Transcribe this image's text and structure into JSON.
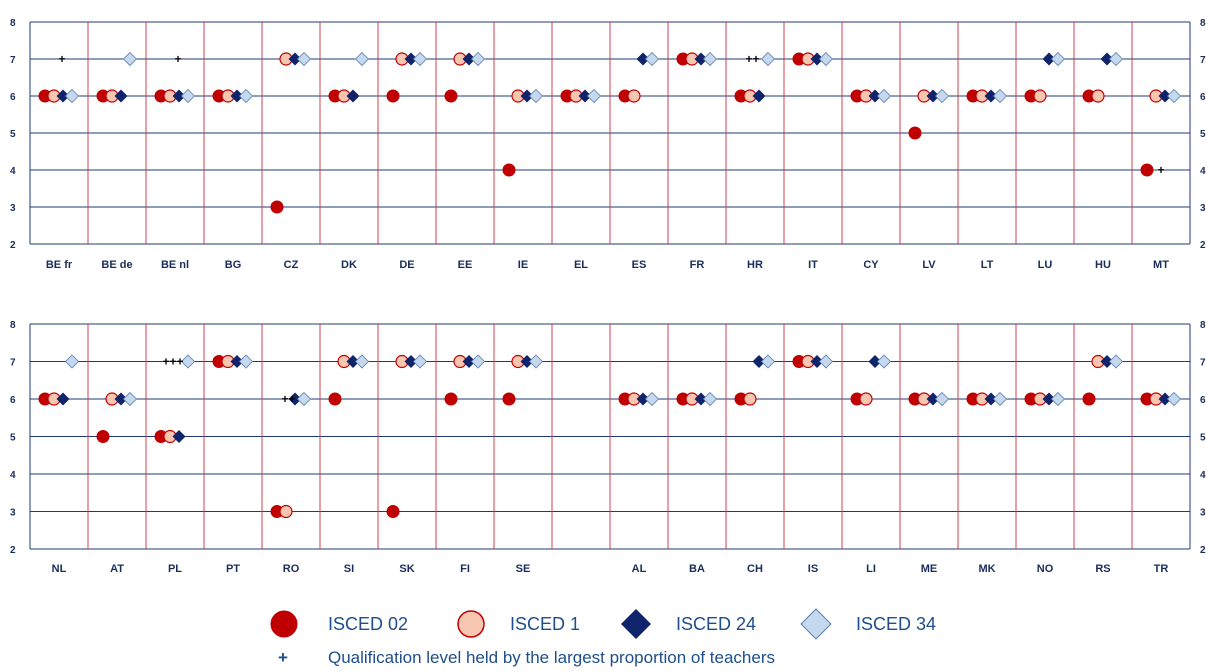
{
  "chart_data": [
    {
      "type": "scatter",
      "ylim": [
        2,
        8
      ],
      "yticks": [
        2,
        3,
        4,
        5,
        6,
        7,
        8
      ],
      "categories": [
        "BE fr",
        "BE de",
        "BE nl",
        "BG",
        "CZ",
        "DK",
        "DE",
        "EE",
        "IE",
        "EL",
        "ES",
        "FR",
        "HR",
        "IT",
        "CY",
        "LV",
        "LT",
        "LU",
        "HU",
        "MT"
      ],
      "series": [
        {
          "name": "ISCED 02",
          "values": [
            6,
            6,
            6,
            6,
            3,
            6,
            6,
            6,
            4,
            6,
            6,
            7,
            6,
            7,
            6,
            5,
            6,
            6,
            6,
            4
          ]
        },
        {
          "name": "ISCED 1",
          "values": [
            6,
            6,
            6,
            6,
            7,
            6,
            7,
            7,
            6,
            6,
            6,
            7,
            6,
            7,
            6,
            6,
            6,
            6,
            6,
            6
          ]
        },
        {
          "name": "ISCED 24",
          "values": [
            6,
            6,
            6,
            6,
            7,
            6,
            7,
            7,
            6,
            6,
            7,
            7,
            6,
            7,
            6,
            6,
            6,
            7,
            7,
            6
          ]
        },
        {
          "name": "ISCED 34",
          "values": [
            6,
            7,
            6,
            6,
            7,
            7,
            7,
            7,
            6,
            6,
            7,
            7,
            7,
            7,
            6,
            6,
            6,
            7,
            7,
            6
          ]
        }
      ],
      "plus_marks": [
        {
          "category": "BE fr",
          "level": 7,
          "count": 1
        },
        {
          "category": "BE nl",
          "level": 7,
          "count": 1
        },
        {
          "category": "HR",
          "level": 7,
          "count": 2
        },
        {
          "category": "MT",
          "level": 4,
          "count": 1
        }
      ]
    },
    {
      "type": "scatter",
      "ylim": [
        2,
        8
      ],
      "yticks": [
        2,
        3,
        4,
        5,
        6,
        7,
        8
      ],
      "categories": [
        "NL",
        "AT",
        "PL",
        "PT",
        "RO",
        "SI",
        "SK",
        "FI",
        "SE",
        "",
        "AL",
        "BA",
        "CH",
        "IS",
        "LI",
        "ME",
        "MK",
        "NO",
        "RS",
        "TR"
      ],
      "series": [
        {
          "name": "ISCED 02",
          "values": [
            6,
            5,
            5,
            7,
            3,
            6,
            3,
            6,
            6,
            null,
            6,
            6,
            6,
            7,
            6,
            6,
            6,
            6,
            6,
            6
          ]
        },
        {
          "name": "ISCED 1",
          "values": [
            6,
            6,
            5,
            7,
            3,
            7,
            7,
            7,
            7,
            null,
            6,
            6,
            6,
            7,
            6,
            6,
            6,
            6,
            7,
            6
          ]
        },
        {
          "name": "ISCED 24",
          "values": [
            6,
            6,
            5,
            7,
            6,
            7,
            7,
            7,
            7,
            null,
            6,
            6,
            7,
            7,
            7,
            6,
            6,
            6,
            7,
            6
          ]
        },
        {
          "name": "ISCED 34",
          "values": [
            7,
            6,
            7,
            7,
            6,
            7,
            7,
            7,
            7,
            null,
            6,
            6,
            7,
            7,
            7,
            6,
            6,
            6,
            7,
            6
          ]
        }
      ],
      "plus_marks": [
        {
          "category": "PL",
          "level": 7,
          "count": 3
        },
        {
          "category": "RO",
          "level": 6,
          "count": 2
        }
      ]
    }
  ],
  "legend": {
    "items": [
      {
        "label": "ISCED 02",
        "symbol": "circle-filled"
      },
      {
        "label": "ISCED 1",
        "symbol": "circle-light"
      },
      {
        "label": "ISCED 24",
        "symbol": "diamond-dark"
      },
      {
        "label": "ISCED 34",
        "symbol": "diamond-light"
      }
    ],
    "plus_symbol": "+",
    "plus_label": "Qualification level held by the largest proportion of teachers"
  },
  "colors": {
    "isced02": "#c00000",
    "isced1_fill": "#f7c6b0",
    "isced1_stroke": "#c00000",
    "isced24": "#10246b",
    "isced34_fill": "#c5d8ee",
    "isced34_stroke": "#5a7fb0",
    "gridline": "#1f3a7a",
    "separator": "#d04050",
    "label": "#1a2d5a",
    "legend_text": "#1f4e8c"
  }
}
